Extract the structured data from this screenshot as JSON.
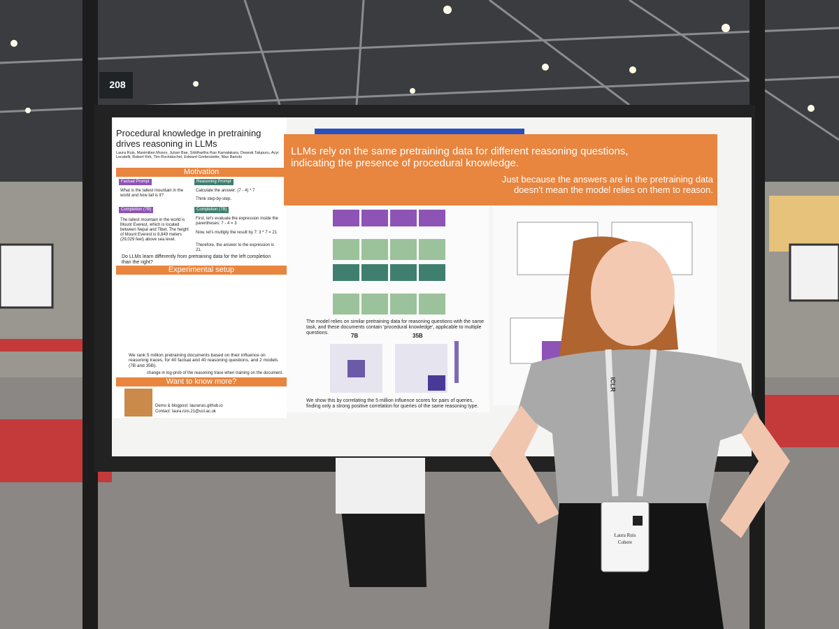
{
  "booth_number": "208",
  "poster": {
    "title": "Procedural knowledge in pretraining drives reasoning in LLMs",
    "authors": "Laura Ruis, Maximilian Mozes, Juhan Bae, Siddhartha Rao Kamalakara, Dwarak Talupuru, Acyr Locatelli, Robert Kirk, Tim Rocktäschel, Edward Grefenstette, Max Bartolo",
    "motivation": {
      "heading": "Motivation",
      "factual_label": "Factual Prompt",
      "factual_prompt": "What is the tallest mountain in the world and how tall is it?",
      "reasoning_label": "Reasoning Prompt",
      "reasoning_prompt": "Calculate the answer: (7 - 4) * 7",
      "reasoning_hint": "Think step-by-step.",
      "completion_label": "Completion (7B)",
      "factual_completion": "The tallest mountain in the world is Mount Everest, which is located between Nepal and Tibet. The height of Mount Everest is 8,849 meters (29,029 feet) above sea level.",
      "reasoning_completion_1": "First, let's evaluate the expression inside the parentheses: 7 - 4 = 3",
      "reasoning_completion_2": "Now, let's multiply the result by 7: 3 * 7 = 21",
      "reasoning_completion_3": "Therefore, the answer to the expression is 21.",
      "question": "Do LLMs learn differently from pretraining data for the left completion than the right?"
    },
    "setup": {
      "heading": "Experimental setup",
      "text": "We rank 5 million pretraining documents based on their influence on reasoning traces, for 40 factual and 40 reasoning questions, and 2 models (7B and 35B).",
      "score_note": "change in log-prob of the reasoning trace when training on the document."
    },
    "more": {
      "heading": "Want to know more?",
      "demo": "Demo & blogpost: lauraruis.github.io",
      "contact": "Contact: laura.ruis.21@ucl.ac.uk"
    },
    "headline": "LLMs rely on the same pretraining data for different reasoning questions, indicating the presence of procedural knowledge.",
    "subheadline": "Just because the answers are in the pretraining data doesn't mean the model relies on them to reason.",
    "finding_1": "The model relies on similar pretraining data for reasoning questions with the same task, and these documents contain 'procedural knowledge', applicable to multiple questions.",
    "finding_2": "We show this by correlating the 5 million influence scores for pairs of queries, finding only a strong positive correlation for queries of the same reasoning type.",
    "model_7b": "7B",
    "model_35b": "35B"
  },
  "badge": {
    "brand": "ICLR",
    "name": "Laura Ruis",
    "org": "Cohere"
  }
}
